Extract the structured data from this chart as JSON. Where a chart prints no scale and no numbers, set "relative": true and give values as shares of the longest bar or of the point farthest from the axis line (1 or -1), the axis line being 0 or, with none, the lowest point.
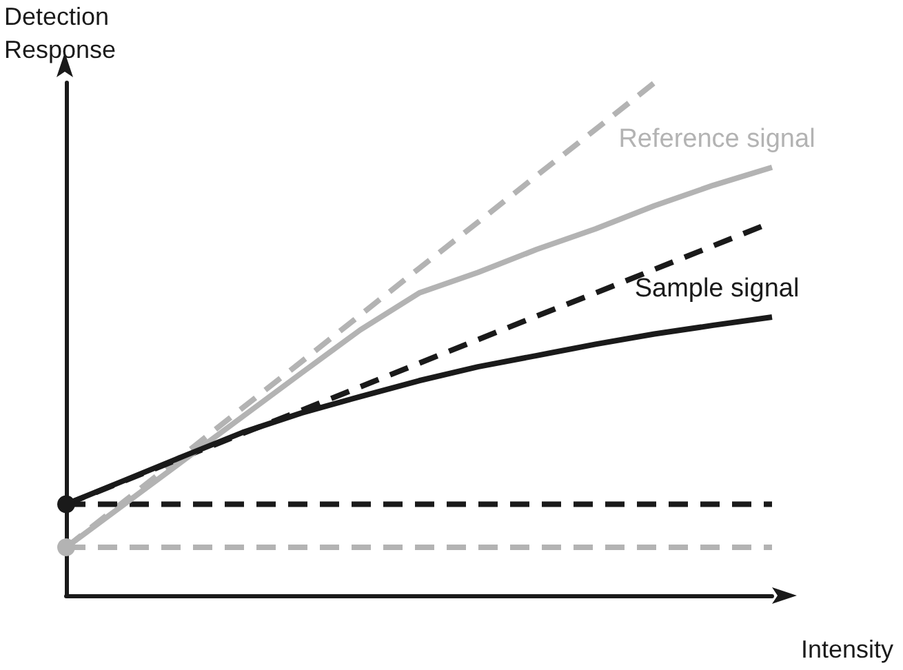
{
  "chart_data": {
    "type": "line",
    "relative": true,
    "xlabel": "Intensity",
    "ylabel": "Detection\nResponse",
    "grid": false,
    "categories": [
      null,
      null,
      null,
      null,
      null,
      null,
      null,
      null,
      null,
      null,
      null,
      null,
      null
    ],
    "series": [
      {
        "name": "Reference signal",
        "color": "#b3b3b3",
        "values": [
          0.094,
          0.179,
          0.264,
          0.349,
          0.434,
          0.518,
          0.59,
          0.63,
          0.675,
          0.715,
          0.76,
          0.8,
          0.835
        ],
        "line_style": "solid"
      },
      {
        "color": "#b3b3b3",
        "values": [
          0.094,
          0.185,
          0.275,
          0.366,
          0.456,
          0.547,
          0.638,
          0.728,
          0.819,
          0.909,
          1.0,
          null,
          null
        ],
        "line_style": "dashed"
      },
      {
        "color": "#b3b3b3",
        "values": [
          0.094,
          0.094,
          0.094,
          0.094,
          0.094,
          0.094,
          0.094,
          0.094,
          0.094,
          0.094,
          0.094,
          0.094,
          0.094
        ],
        "line_style": "dashed"
      },
      {
        "name": "Sample signal",
        "color": "#1a1a1a",
        "values": [
          0.178,
          0.225,
          0.272,
          0.318,
          0.356,
          0.388,
          0.419,
          0.446,
          0.468,
          0.49,
          0.51,
          0.527,
          0.543
        ],
        "line_style": "solid"
      },
      {
        "color": "#1a1a1a",
        "values": [
          0.178,
          0.224,
          0.27,
          0.316,
          0.361,
          0.407,
          0.453,
          0.499,
          0.545,
          0.59,
          0.636,
          0.682,
          0.728
        ],
        "line_style": "dashed"
      },
      {
        "color": "#1a1a1a",
        "values": [
          0.178,
          0.178,
          0.178,
          0.178,
          0.178,
          0.178,
          0.178,
          0.178,
          0.178,
          0.178,
          0.178,
          0.178,
          0.178
        ],
        "line_style": "dashed"
      }
    ]
  }
}
